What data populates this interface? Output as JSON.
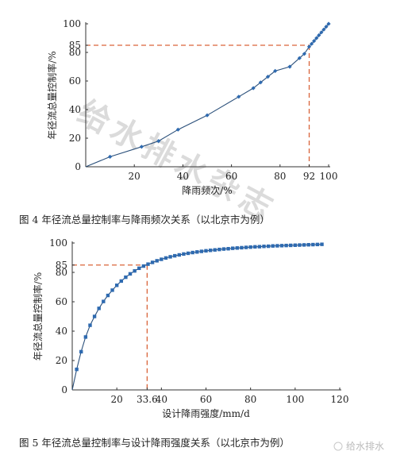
{
  "chart_data": [
    {
      "type": "line",
      "caption": "图 4   年径流总量控制率与降雨频次关系（以北京市为例）",
      "xlabel": "降雨频次/%",
      "ylabel": "年径流总量控制率/%",
      "xlim": [
        0,
        100
      ],
      "ylim": [
        0,
        100
      ],
      "x_ticks": [
        "0",
        "20",
        "40",
        "60",
        "80",
        "92",
        "100"
      ],
      "y_ticks": [
        "20",
        "40",
        "60",
        "80",
        "85",
        "100"
      ],
      "colors": {
        "line": "#2a4f7a",
        "marker": "#2e6ab0",
        "reference": "#d9643a"
      },
      "reference": {
        "x": 92,
        "y": 85
      },
      "series": [
        {
          "x": [
            0,
            10,
            23,
            30,
            38,
            50,
            63,
            69,
            72,
            75,
            78,
            84,
            88,
            90,
            92,
            93,
            94,
            95,
            96,
            97,
            98,
            99,
            100
          ],
          "y": [
            0,
            7,
            14,
            18,
            26,
            36,
            49,
            55,
            59,
            63,
            67,
            70,
            76,
            79,
            84,
            86,
            88,
            90,
            92,
            94,
            96,
            98,
            100
          ]
        }
      ]
    },
    {
      "type": "line",
      "caption": "图 5   年径流总量控制率与设计降雨强度关系（以北京市为例）",
      "xlabel": "设计降雨强度/mm/d",
      "ylabel": "年径流总量控制率/%",
      "xlim": [
        0,
        120
      ],
      "ylim": [
        0,
        100
      ],
      "x_ticks": [
        "0",
        "20",
        "33.6",
        "40",
        "60",
        "80",
        "100",
        "120"
      ],
      "y_ticks": [
        "20",
        "40",
        "60",
        "80",
        "85",
        "100"
      ],
      "colors": {
        "line": "#2a4f7a",
        "marker": "#2e6ab0",
        "reference": "#d9643a"
      },
      "reference": {
        "x": 33.6,
        "y": 85
      },
      "series": [
        {
          "x": [
            0,
            2,
            4,
            6,
            8,
            10,
            12,
            14,
            16,
            18,
            20,
            22,
            24,
            26,
            28,
            30,
            32,
            34,
            36,
            38,
            40,
            42,
            44,
            46,
            48,
            50,
            52,
            54,
            56,
            58,
            60,
            62,
            64,
            66,
            68,
            70,
            72,
            74,
            76,
            78,
            80,
            82,
            84,
            86,
            88,
            90,
            92,
            94,
            96,
            98,
            100,
            102,
            104,
            106,
            108,
            110,
            112
          ],
          "y": [
            0,
            14,
            26,
            36,
            44,
            50,
            55.5,
            60.2,
            64.3,
            67.9,
            71.2,
            74.1,
            76.7,
            79,
            81,
            82.8,
            84.3,
            85.6,
            86.8,
            87.9,
            88.9,
            89.8,
            90.6,
            91.3,
            91.9,
            92.5,
            93,
            93.5,
            93.9,
            94.3,
            94.7,
            95,
            95.3,
            95.6,
            95.9,
            96.1,
            96.4,
            96.6,
            96.8,
            97,
            97.2,
            97.4,
            97.5,
            97.7,
            97.8,
            98,
            98.1,
            98.2,
            98.3,
            98.4,
            98.5,
            98.6,
            98.7,
            98.8,
            98.9,
            99,
            99.1
          ]
        }
      ]
    }
  ],
  "watermark": "给水排水杂志",
  "footer": "给水排水"
}
